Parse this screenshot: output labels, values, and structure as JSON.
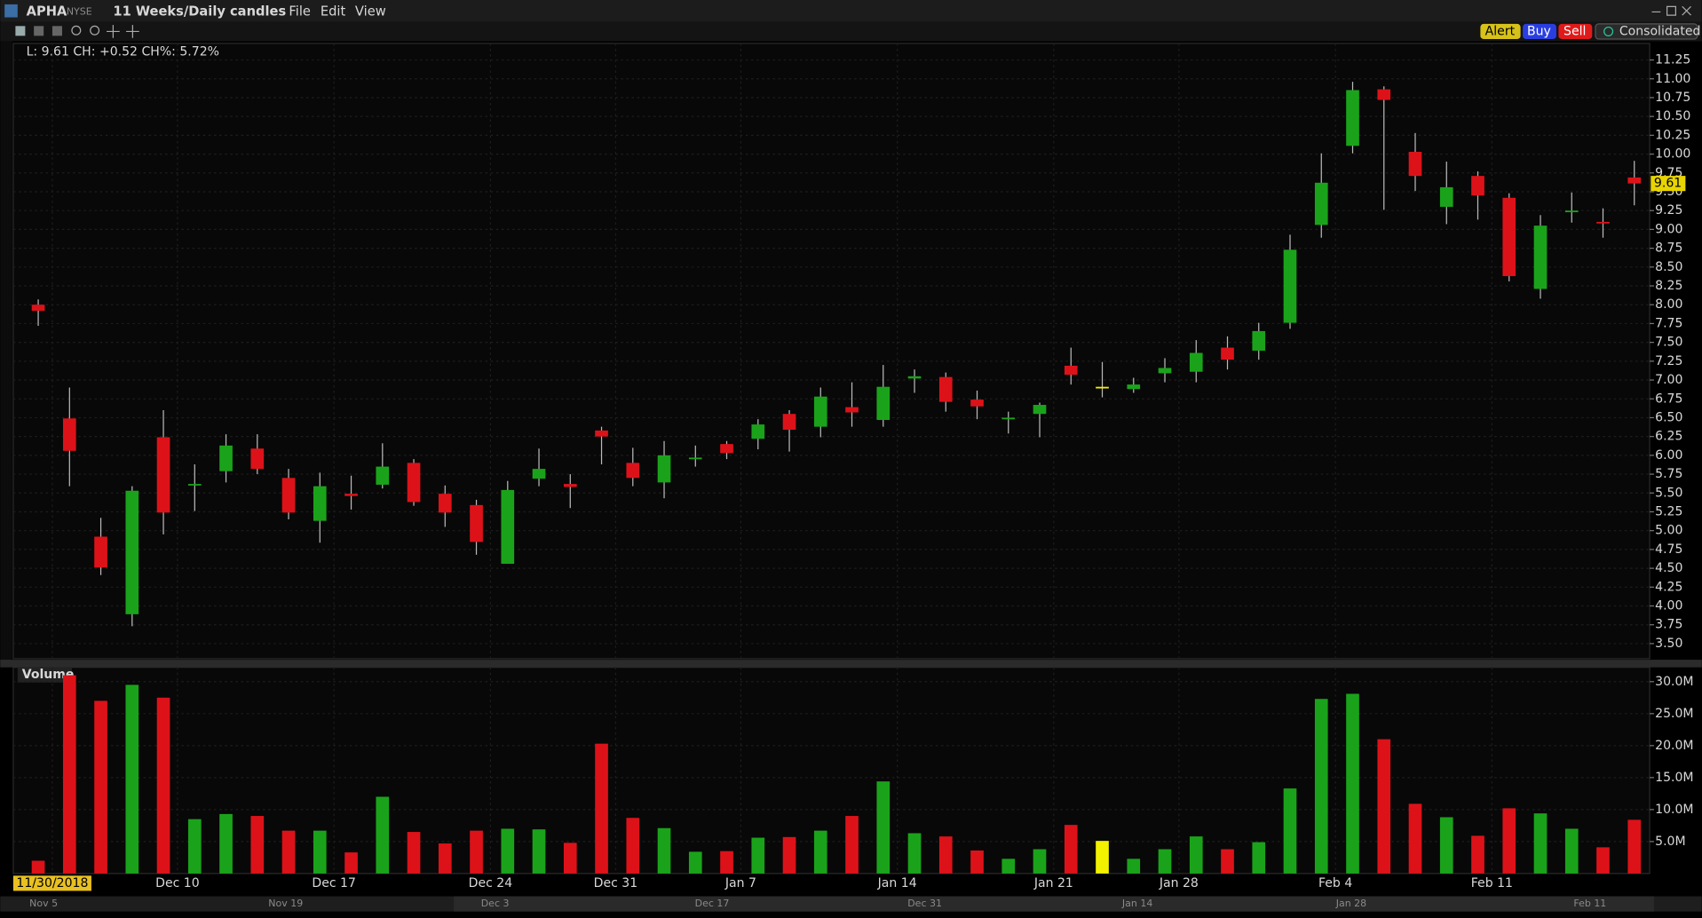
{
  "header": {
    "symbol": "APHA",
    "exchange": "NYSE",
    "period": "11 Weeks/Daily candles",
    "menu": [
      "File",
      "Edit",
      "View"
    ],
    "buttons": [
      "Alert",
      "Buy",
      "Sell",
      "Consolidated"
    ]
  },
  "info": "L: 9.61 CH: +0.52 CH%: 5.72%",
  "chart_data": {
    "type": "candlestick",
    "open": [
      8.0,
      6.49,
      4.92,
      3.89,
      6.24,
      5.6,
      5.79,
      6.09,
      5.7,
      5.13,
      5.49,
      5.61,
      5.9,
      5.49,
      5.34,
      4.56,
      5.69,
      5.62,
      6.33,
      5.9,
      5.64,
      5.95,
      6.15,
      6.22,
      6.55,
      6.38,
      6.64,
      6.47,
      7.02,
      7.04,
      6.74,
      6.49,
      6.55,
      7.19,
      6.91,
      6.88,
      7.09,
      7.11,
      7.43,
      7.39,
      7.76,
      9.06,
      10.11,
      10.86,
      10.03,
      9.3,
      9.71,
      9.42,
      8.21,
      9.23,
      9.1,
      9.69
    ],
    "high": [
      8.07,
      6.9,
      5.17,
      5.59,
      6.6,
      5.88,
      6.28,
      6.28,
      5.82,
      5.77,
      5.73,
      6.16,
      5.95,
      5.6,
      5.41,
      5.66,
      6.09,
      5.75,
      6.38,
      6.1,
      6.19,
      6.13,
      6.19,
      6.48,
      6.6,
      6.9,
      6.97,
      7.2,
      7.14,
      7.1,
      6.86,
      6.58,
      6.7,
      7.43,
      7.24,
      7.03,
      7.29,
      7.53,
      7.58,
      7.76,
      8.93,
      10.01,
      10.96,
      10.9,
      10.28,
      9.9,
      9.77,
      9.48,
      9.19,
      9.49,
      9.28,
      9.91
    ],
    "low": [
      7.72,
      5.59,
      4.41,
      3.73,
      4.95,
      5.26,
      5.64,
      5.75,
      5.15,
      4.84,
      5.28,
      5.56,
      5.33,
      5.05,
      4.68,
      4.56,
      5.59,
      5.3,
      5.88,
      5.59,
      5.43,
      5.85,
      5.95,
      6.08,
      6.05,
      6.24,
      6.38,
      6.38,
      6.83,
      6.58,
      6.48,
      6.29,
      6.24,
      6.94,
      6.77,
      6.83,
      6.97,
      6.97,
      7.14,
      7.27,
      7.68,
      8.89,
      10.01,
      9.26,
      9.51,
      9.07,
      9.13,
      8.31,
      8.08,
      9.09,
      8.89,
      9.32
    ],
    "close": [
      7.92,
      6.06,
      4.51,
      5.53,
      5.24,
      5.62,
      6.13,
      5.82,
      5.24,
      5.59,
      5.46,
      5.85,
      5.38,
      5.24,
      4.85,
      5.54,
      5.82,
      5.58,
      6.25,
      5.7,
      6.0,
      5.97,
      6.03,
      6.41,
      6.34,
      6.78,
      6.57,
      6.91,
      7.05,
      6.71,
      6.65,
      6.5,
      6.67,
      7.07,
      6.91,
      6.94,
      7.16,
      7.36,
      7.27,
      7.65,
      8.73,
      9.62,
      10.85,
      10.72,
      9.71,
      9.56,
      9.45,
      8.38,
      9.05,
      9.25,
      9.08,
      9.61
    ],
    "volume_label": "Volume",
    "volume": [
      2000000,
      31000000,
      27000000,
      29500000,
      27500000,
      8500000,
      9300000,
      9000000,
      6700000,
      6700000,
      3300000,
      12000000,
      6500000,
      4700000,
      6700000,
      7000000,
      6900000,
      4800000,
      20300000,
      8700000,
      7100000,
      3400000,
      3500000,
      5600000,
      5700000,
      6700000,
      9000000,
      14400000,
      6300000,
      5800000,
      3600000,
      2300000,
      3800000,
      7600000,
      5100000,
      2300000,
      3800000,
      5800000,
      3800000,
      4900000,
      13300000,
      27300000,
      28100000,
      21000000,
      10900000,
      8800000,
      5900000,
      10200000,
      9400000,
      7000000,
      4100000,
      8400000
    ],
    "up_color": "#1aa31a",
    "down_color": "#dd1219",
    "unchanged_color": "#f2f200",
    "grid": true,
    "ylim": [
      3.3,
      11.47
    ],
    "yticks": [
      {
        "value": 3.5,
        "label": "3.50"
      },
      {
        "value": 3.75,
        "label": "3.75"
      },
      {
        "value": 4,
        "label": "4.00"
      },
      {
        "value": 4.25,
        "label": "4.25"
      },
      {
        "value": 4.5,
        "label": "4.50"
      },
      {
        "value": 4.75,
        "label": "4.75"
      },
      {
        "value": 5,
        "label": "5.00"
      },
      {
        "value": 5.25,
        "label": "5.25"
      },
      {
        "value": 5.5,
        "label": "5.50"
      },
      {
        "value": 5.75,
        "label": "5.75"
      },
      {
        "value": 6,
        "label": "6.00"
      },
      {
        "value": 6.25,
        "label": "6.25"
      },
      {
        "value": 6.5,
        "label": "6.50"
      },
      {
        "value": 6.75,
        "label": "6.75"
      },
      {
        "value": 7,
        "label": "7.00"
      },
      {
        "value": 7.25,
        "label": "7.25"
      },
      {
        "value": 7.5,
        "label": "7.50"
      },
      {
        "value": 7.75,
        "label": "7.75"
      },
      {
        "value": 8,
        "label": "8.00"
      },
      {
        "value": 8.25,
        "label": "8.25"
      },
      {
        "value": 8.5,
        "label": "8.50"
      },
      {
        "value": 8.75,
        "label": "8.75"
      },
      {
        "value": 9,
        "label": "9.00"
      },
      {
        "value": 9.25,
        "label": "9.25"
      },
      {
        "value": 9.5,
        "label": "9.50"
      },
      {
        "value": 9.75,
        "label": "9.75"
      },
      {
        "value": 10,
        "label": "10.00"
      },
      {
        "value": 10.25,
        "label": "10.25"
      },
      {
        "value": 10.5,
        "label": "10.50"
      },
      {
        "value": 10.75,
        "label": "10.75"
      },
      {
        "value": 11,
        "label": "11.00"
      },
      {
        "value": 11.25,
        "label": "11.25"
      }
    ],
    "y2lim": [
      0,
      31900000
    ],
    "y2ticks": [
      {
        "value": 5000000,
        "label": "5.0M"
      },
      {
        "value": 10000000,
        "label": "10.0M"
      },
      {
        "value": 15000000,
        "label": "15.0M"
      },
      {
        "value": 20000000,
        "label": "20.0M"
      },
      {
        "value": 25000000,
        "label": "25.0M"
      },
      {
        "value": 30000000,
        "label": "30.0M"
      }
    ],
    "x_labels": [
      {
        "index": 0,
        "label": "11/30/2018"
      },
      {
        "index": 4,
        "label": "Dec 10"
      },
      {
        "index": 9,
        "label": "Dec 17"
      },
      {
        "index": 14,
        "label": "Dec 24"
      },
      {
        "index": 18,
        "label": "Dec 31"
      },
      {
        "index": 22,
        "label": "Jan 7"
      },
      {
        "index": 27,
        "label": "Jan 14"
      },
      {
        "index": 32,
        "label": "Jan 21"
      },
      {
        "index": 36,
        "label": "Jan 28"
      },
      {
        "index": 41,
        "label": "Feb 4"
      },
      {
        "index": 46,
        "label": "Feb 11"
      }
    ],
    "navigator_labels": [
      "Nov 5",
      "Nov 19",
      "Dec 3",
      "Dec 17",
      "Dec 31",
      "Jan 14",
      "Jan 28",
      "Feb 11"
    ]
  }
}
